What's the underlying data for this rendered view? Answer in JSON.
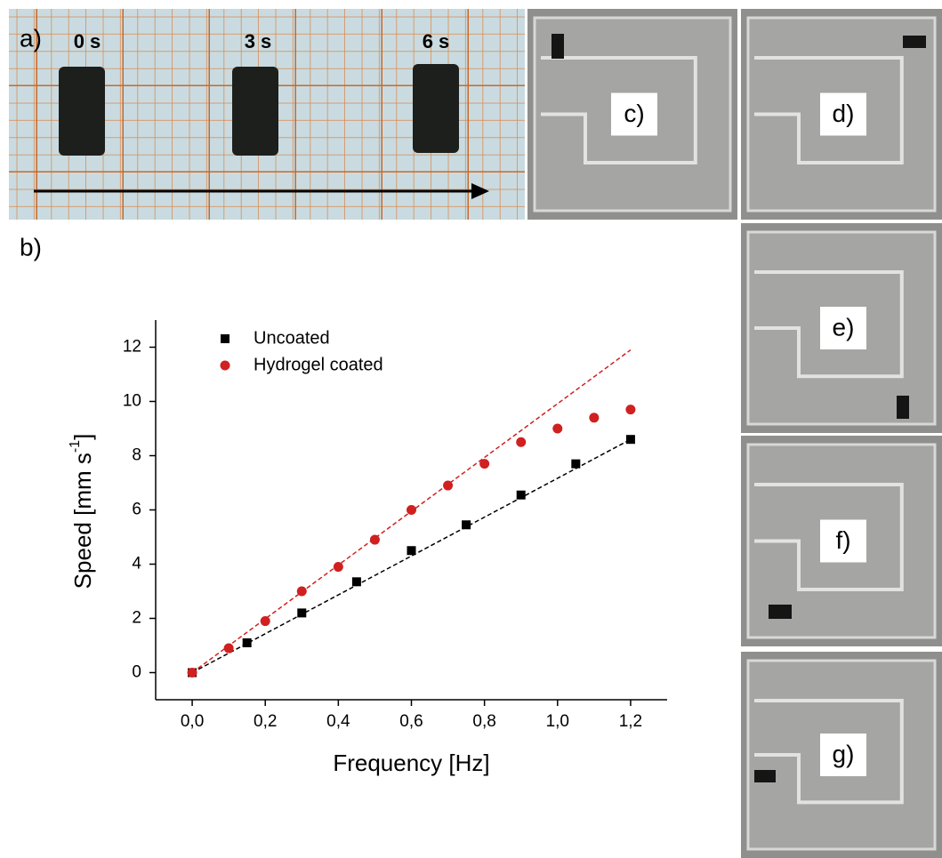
{
  "panels": {
    "a": "a)",
    "b": "b)",
    "c": "c)",
    "d": "d)",
    "e": "e)",
    "f": "f)",
    "g": "g)"
  },
  "times": [
    "0 s",
    "3 s",
    "6 s"
  ],
  "chart_data": {
    "type": "scatter",
    "xlabel": "Frequency [Hz]",
    "ylabel": [
      "Speed [mm s",
      "-1",
      "]"
    ],
    "xlim": [
      -0.1,
      1.3
    ],
    "ylim": [
      -1,
      13
    ],
    "xticks": [
      {
        "value": 0,
        "label": "0,0"
      },
      {
        "value": 0.2,
        "label": "0,2"
      },
      {
        "value": 0.4,
        "label": "0,4"
      },
      {
        "value": 0.6,
        "label": "0,6"
      },
      {
        "value": 0.8,
        "label": "0,8"
      },
      {
        "value": 1.0,
        "label": "1,0"
      },
      {
        "value": 1.2,
        "label": "1,2"
      }
    ],
    "yticks": [
      0,
      2,
      4,
      6,
      8,
      10,
      12
    ],
    "series": [
      {
        "name": "Uncoated",
        "color": "#000000",
        "marker": "square",
        "x": [
          0,
          0.15,
          0.3,
          0.45,
          0.6,
          0.75,
          0.9,
          1.05,
          1.2
        ],
        "values": [
          0,
          1.1,
          2.2,
          3.35,
          4.5,
          5.45,
          6.55,
          7.7,
          8.6
        ]
      },
      {
        "name": "Hydrogel coated",
        "color": "#d02020",
        "marker": "circle",
        "x": [
          0,
          0.1,
          0.2,
          0.3,
          0.4,
          0.5,
          0.6,
          0.7,
          0.8,
          0.9,
          1.0,
          1.1,
          1.2
        ],
        "values": [
          0,
          0.9,
          1.9,
          3.0,
          3.9,
          4.9,
          6.0,
          6.9,
          7.7,
          8.5,
          9.0,
          9.4,
          9.7
        ]
      }
    ],
    "fits": [
      {
        "color": "#000000",
        "x": [
          0,
          1.2
        ],
        "values": [
          0,
          8.6
        ]
      },
      {
        "color": "#d02020",
        "x": [
          0,
          1.2
        ],
        "values": [
          0,
          11.9
        ]
      }
    ]
  }
}
